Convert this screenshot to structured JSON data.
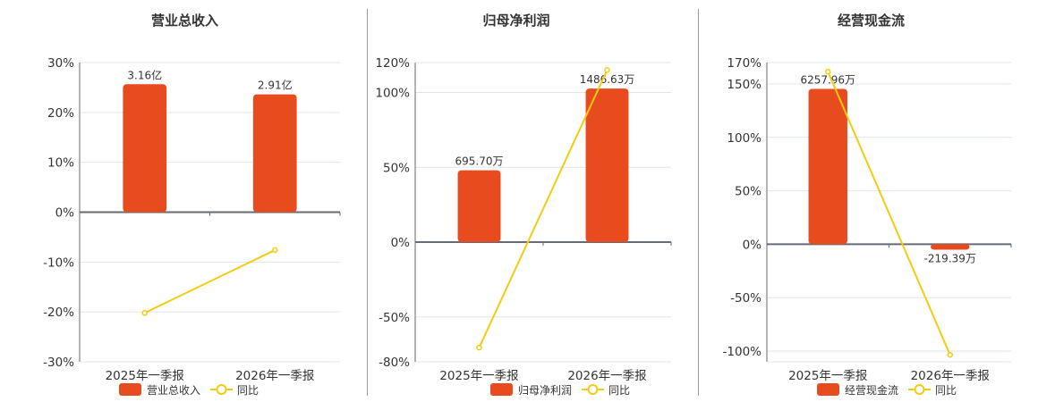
{
  "colors": {
    "bar": "#e84c1e",
    "line": "#f2cc0f",
    "grid": "#dfe5f0",
    "axis": "#666a73",
    "text": "#333333"
  },
  "chart_data": [
    {
      "type": "bar+line",
      "title": "营业总收入",
      "categories": [
        "2025年一季报",
        "2026年一季报"
      ],
      "bar_series": {
        "name": "营业总收入",
        "values": [
          3.16,
          2.91
        ],
        "labels": [
          "3.16亿",
          "2.91亿"
        ]
      },
      "line_series": {
        "name": "同比",
        "values": [
          -20.2,
          -7.6
        ]
      },
      "y_ticks": [
        30,
        20,
        10,
        0,
        -10,
        -20,
        -30
      ],
      "ylim": [
        -30,
        30
      ],
      "grid": true,
      "legend": "bottom"
    },
    {
      "type": "bar+line",
      "title": "归母净利润",
      "categories": [
        "2025年一季报",
        "2026年一季报"
      ],
      "bar_series": {
        "name": "归母净利润",
        "values": [
          695.7,
          1486.63
        ],
        "labels": [
          "695.70万",
          "1486.63万"
        ]
      },
      "line_series": {
        "name": "同比",
        "values": [
          -70.5,
          115
        ]
      },
      "y_ticks": [
        120,
        100,
        50,
        0,
        -50,
        -80
      ],
      "ylim": [
        -80,
        120
      ],
      "grid": true,
      "legend": "bottom"
    },
    {
      "type": "bar+line",
      "title": "经营现金流",
      "categories": [
        "2025年一季报",
        "2026年一季报"
      ],
      "bar_series": {
        "name": "经营现金流",
        "values": [
          6257.96,
          -219.39
        ],
        "labels": [
          "6257.96万",
          "-219.39万"
        ]
      },
      "line_series": {
        "name": "同比",
        "values": [
          161.5,
          -103.5
        ]
      },
      "y_ticks": [
        170,
        150,
        100,
        50,
        0,
        -50,
        -100
      ],
      "ylim": [
        -110,
        170
      ],
      "grid": true,
      "legend": "bottom"
    }
  ]
}
